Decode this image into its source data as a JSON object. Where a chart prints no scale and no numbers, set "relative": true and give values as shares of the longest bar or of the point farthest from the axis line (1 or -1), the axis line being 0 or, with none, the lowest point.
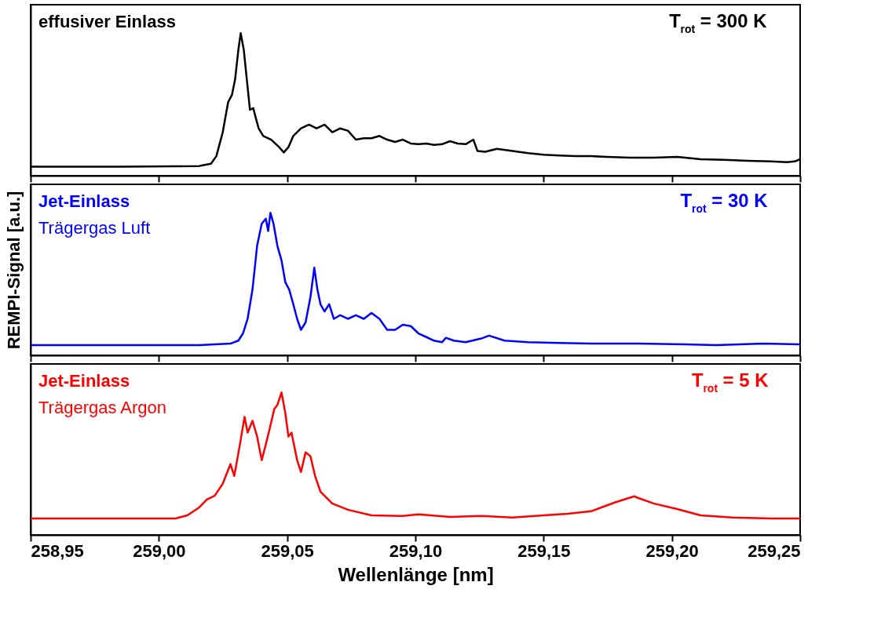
{
  "chart_data": [
    {
      "type": "line",
      "relative": true,
      "tick_labels": false,
      "xlim": [
        258.95,
        259.25
      ],
      "xticks": [
        {
          "value": 258.95,
          "label": null
        },
        {
          "value": 259.0,
          "label": null
        },
        {
          "value": 259.05,
          "label": null
        },
        {
          "value": 259.1,
          "label": null
        },
        {
          "value": 259.15,
          "label": null
        },
        {
          "value": 259.2,
          "label": null
        },
        {
          "value": 259.25,
          "label": null
        }
      ],
      "annotations": [
        "effusiver Einlass",
        "T$_{rot}$ = 300 K"
      ],
      "series": [
        {
          "color": "#000000",
          "x": [
            258.95,
            258.9851,
            259.0157,
            259.0203,
            259.0224,
            259.0249,
            259.027,
            259.0285,
            259.0297,
            259.031,
            259.0319,
            259.0331,
            259.0343,
            259.0355,
            259.0368,
            259.0377,
            259.0389,
            259.0407,
            259.0438,
            259.0469,
            259.0487,
            259.0505,
            259.0524,
            259.0554,
            259.0585,
            259.0615,
            259.0646,
            259.0676,
            259.0707,
            259.0737,
            259.0768,
            259.0799,
            259.0829,
            259.086,
            259.089,
            259.0921,
            259.0951,
            259.0982,
            259.1012,
            259.1043,
            259.1073,
            259.1104,
            259.1135,
            259.1165,
            259.1196,
            259.1226,
            259.1242,
            259.1272,
            259.1318,
            259.1379,
            259.144,
            259.1501,
            259.1562,
            259.1623,
            259.1685,
            259.1746,
            259.1837,
            259.1929,
            259.2021,
            259.2112,
            259.2204,
            259.2296,
            259.2387,
            259.2448,
            259.2479,
            259.25
          ],
          "values": [
            0.063,
            0.063,
            0.068,
            0.084,
            0.137,
            0.305,
            0.516,
            0.568,
            0.674,
            0.884,
            1,
            0.884,
            0.674,
            0.463,
            0.474,
            0.411,
            0.332,
            0.279,
            0.253,
            0.2,
            0.163,
            0.2,
            0.279,
            0.332,
            0.358,
            0.332,
            0.358,
            0.305,
            0.332,
            0.316,
            0.253,
            0.263,
            0.263,
            0.279,
            0.253,
            0.237,
            0.253,
            0.226,
            0.221,
            0.226,
            0.216,
            0.221,
            0.242,
            0.226,
            0.221,
            0.253,
            0.174,
            0.168,
            0.189,
            0.174,
            0.158,
            0.147,
            0.142,
            0.137,
            0.137,
            0.132,
            0.126,
            0.126,
            0.132,
            0.116,
            0.111,
            0.105,
            0.1,
            0.095,
            0.1,
            0.116
          ]
        }
      ]
    },
    {
      "type": "line",
      "relative": true,
      "tick_labels": false,
      "ylabel": "REMPI-Signal [a.u.]",
      "xlim": [
        258.95,
        259.25
      ],
      "xticks": [
        {
          "value": 258.95,
          "label": null
        },
        {
          "value": 259.0,
          "label": null
        },
        {
          "value": 259.05,
          "label": null
        },
        {
          "value": 259.1,
          "label": null
        },
        {
          "value": 259.15,
          "label": null
        },
        {
          "value": 259.2,
          "label": null
        },
        {
          "value": 259.25,
          "label": null
        }
      ],
      "annotations": [
        "Jet-Einlass",
        "Trägergas Luft",
        "T$_{rot}$ = 30 K"
      ],
      "series": [
        {
          "color": "#0000ff",
          "x": [
            258.95,
            259.0157,
            259.0279,
            259.031,
            259.0328,
            259.0346,
            259.0365,
            259.0383,
            259.0401,
            259.0417,
            259.0426,
            259.0435,
            259.0447,
            259.0462,
            259.0478,
            259.0493,
            259.0508,
            259.0524,
            259.0539,
            259.0554,
            259.0572,
            259.0591,
            259.0606,
            259.0618,
            259.063,
            259.0646,
            259.0664,
            259.0682,
            259.0707,
            259.0737,
            259.0768,
            259.0799,
            259.0829,
            259.086,
            259.089,
            259.0921,
            259.0951,
            259.0982,
            259.1012,
            259.1043,
            259.1073,
            259.1104,
            259.1119,
            259.115,
            259.1196,
            259.1257,
            259.1287,
            259.1348,
            259.144,
            259.1562,
            259.1685,
            259.1868,
            259.2051,
            259.2173,
            259.2357,
            259.25
          ],
          "values": [
            0.072,
            0.072,
            0.082,
            0.103,
            0.154,
            0.256,
            0.462,
            0.769,
            0.923,
            0.959,
            0.872,
            1,
            0.923,
            0.769,
            0.667,
            0.513,
            0.462,
            0.359,
            0.256,
            0.179,
            0.231,
            0.41,
            0.615,
            0.462,
            0.359,
            0.308,
            0.359,
            0.256,
            0.282,
            0.256,
            0.282,
            0.256,
            0.297,
            0.256,
            0.179,
            0.179,
            0.215,
            0.205,
            0.154,
            0.128,
            0.103,
            0.092,
            0.123,
            0.103,
            0.092,
            0.118,
            0.138,
            0.103,
            0.092,
            0.087,
            0.082,
            0.082,
            0.077,
            0.072,
            0.082,
            0.077
          ]
        }
      ]
    },
    {
      "type": "line",
      "relative": true,
      "tick_labels": "x",
      "xlabel": "Wellenlänge [nm]",
      "xlim": [
        258.95,
        259.25
      ],
      "xticks": [
        {
          "value": 258.95,
          "label": "258,95"
        },
        {
          "value": 259.0,
          "label": "259,00"
        },
        {
          "value": 259.05,
          "label": "259,05"
        },
        {
          "value": 259.1,
          "label": "259,10"
        },
        {
          "value": 259.15,
          "label": "259,15"
        },
        {
          "value": 259.2,
          "label": "259,20"
        },
        {
          "value": 259.25,
          "label": "259,25"
        }
      ],
      "annotations": [
        "Jet-Einlass",
        "Trägergas Argon",
        "T$_{rot}$ = 5 K"
      ],
      "series": [
        {
          "color": "#ff0000",
          "x": [
            258.95,
            258.9851,
            259.0065,
            259.0111,
            259.0157,
            259.0187,
            259.0218,
            259.0249,
            259.0279,
            259.0294,
            259.0316,
            259.0334,
            259.0346,
            259.0365,
            259.0383,
            259.0401,
            259.0417,
            259.0432,
            259.045,
            259.0462,
            259.0478,
            259.0493,
            259.0505,
            259.0517,
            259.0539,
            259.0554,
            259.0572,
            259.0591,
            259.0609,
            259.063,
            259.0676,
            259.0737,
            259.0829,
            259.0951,
            259.1012,
            259.1135,
            259.1257,
            259.1379,
            259.1501,
            259.1593,
            259.1685,
            259.1776,
            259.1853,
            259.1868,
            259.1929,
            259.2021,
            259.2112,
            259.2235,
            259.2387,
            259.25
          ],
          "values": [
            0.116,
            0.116,
            0.116,
            0.138,
            0.193,
            0.249,
            0.276,
            0.359,
            0.497,
            0.414,
            0.635,
            0.829,
            0.718,
            0.801,
            0.691,
            0.525,
            0.635,
            0.746,
            0.884,
            0.912,
            1,
            0.856,
            0.691,
            0.718,
            0.525,
            0.442,
            0.58,
            0.552,
            0.414,
            0.304,
            0.221,
            0.177,
            0.138,
            0.133,
            0.144,
            0.127,
            0.133,
            0.122,
            0.138,
            0.149,
            0.166,
            0.227,
            0.271,
            0.26,
            0.221,
            0.182,
            0.138,
            0.122,
            0.116,
            0.116
          ]
        }
      ]
    }
  ]
}
